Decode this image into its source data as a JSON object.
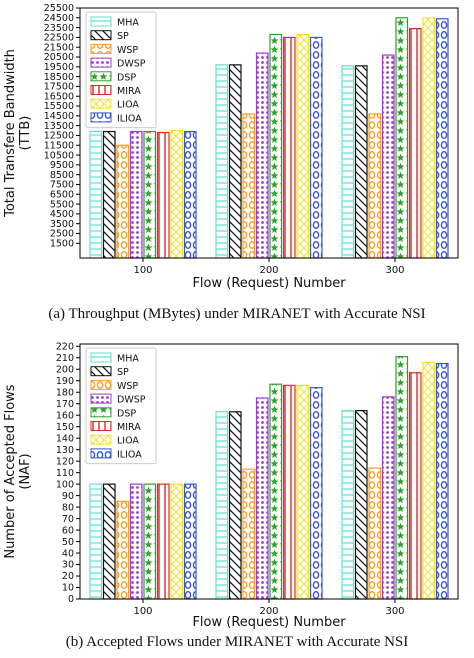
{
  "chart_data": [
    {
      "type": "bar",
      "caption": "(a) Throughput (MBytes) under MIRANET with Accurate NSI",
      "xlabel": "Flow (Request) Number",
      "ylabel": "Total Transfere Bandwidth\n(TTB)",
      "categories": [
        "100",
        "200",
        "300"
      ],
      "ylim": [
        0,
        25500
      ],
      "yticks": [
        1500,
        2500,
        3500,
        4500,
        5500,
        6500,
        7500,
        8500,
        9500,
        10500,
        11500,
        12500,
        13500,
        14500,
        15500,
        16500,
        17500,
        18500,
        19500,
        20500,
        21500,
        22500,
        23500,
        24500,
        25500
      ],
      "ytick_labels": [
        "1500",
        "2500",
        "3500",
        "4500",
        "5500",
        "6500",
        "7500",
        "8500",
        "9500",
        "10500",
        "11500",
        "12500",
        "13500",
        "14500",
        "15500",
        "16500",
        "17500",
        "18500",
        "19500",
        "20500",
        "21500",
        "22500",
        "23500",
        "24500",
        "25500"
      ],
      "legend_position": "top-left",
      "grid": false,
      "series": [
        {
          "name": "MHA",
          "values": [
            12900,
            19700,
            19600
          ],
          "color": "#5fe3d0",
          "pattern": "grid-h"
        },
        {
          "name": "SP",
          "values": [
            12900,
            19700,
            19600
          ],
          "color": "#111111",
          "pattern": "backslash"
        },
        {
          "name": "WSP",
          "values": [
            11500,
            14700,
            14700
          ],
          "color": "#f5a02a",
          "pattern": "circle-o"
        },
        {
          "name": "DWSP",
          "values": [
            12900,
            20900,
            20700
          ],
          "color": "#9b3fd0",
          "pattern": "dots"
        },
        {
          "name": "DSP",
          "values": [
            12900,
            22800,
            24500
          ],
          "color": "#2ea02a",
          "pattern": "stars"
        },
        {
          "name": "MIRA",
          "values": [
            12800,
            22500,
            23400
          ],
          "color": "#e02a2a",
          "pattern": "vbars"
        },
        {
          "name": "LIOA",
          "values": [
            13000,
            22800,
            24500
          ],
          "color": "#f2e32a",
          "pattern": "cross"
        },
        {
          "name": "ILIOA",
          "values": [
            12900,
            22500,
            24400
          ],
          "color": "#3a56d6",
          "pattern": "circle-o"
        }
      ]
    },
    {
      "type": "bar",
      "caption": "(b) Accepted Flows under MIRANET with Accurate NSI",
      "xlabel": "Flow (Request) Number",
      "ylabel": "Number of Accepted Flows\n(NAF)",
      "categories": [
        "100",
        "200",
        "300"
      ],
      "ylim": [
        0,
        222
      ],
      "yticks": [
        0,
        10,
        20,
        30,
        40,
        50,
        60,
        70,
        80,
        90,
        100,
        110,
        120,
        130,
        140,
        150,
        160,
        170,
        180,
        190,
        200,
        210,
        220
      ],
      "ytick_labels": [
        "0",
        "10",
        "20",
        "30",
        "40",
        "50",
        "60",
        "70",
        "80",
        "90",
        "100",
        "110",
        "120",
        "130",
        "140",
        "150",
        "160",
        "170",
        "180",
        "190",
        "200",
        "210",
        "220"
      ],
      "legend_position": "top-left",
      "grid": false,
      "series": [
        {
          "name": "MHA",
          "values": [
            100,
            163,
            164
          ],
          "color": "#5fe3d0",
          "pattern": "grid-h"
        },
        {
          "name": "SP",
          "values": [
            100,
            163,
            164
          ],
          "color": "#111111",
          "pattern": "backslash"
        },
        {
          "name": "WSP",
          "values": [
            85,
            113,
            114
          ],
          "color": "#f5a02a",
          "pattern": "circle-o"
        },
        {
          "name": "DWSP",
          "values": [
            100,
            175,
            176
          ],
          "color": "#9b3fd0",
          "pattern": "dots"
        },
        {
          "name": "DSP",
          "values": [
            100,
            187,
            211
          ],
          "color": "#2ea02a",
          "pattern": "stars"
        },
        {
          "name": "MIRA",
          "values": [
            100,
            186,
            197
          ],
          "color": "#e02a2a",
          "pattern": "vbars"
        },
        {
          "name": "LIOA",
          "values": [
            100,
            186,
            206
          ],
          "color": "#f2e32a",
          "pattern": "cross"
        },
        {
          "name": "ILIOA",
          "values": [
            100,
            184,
            205
          ],
          "color": "#3a56d6",
          "pattern": "circle-o"
        }
      ]
    }
  ]
}
